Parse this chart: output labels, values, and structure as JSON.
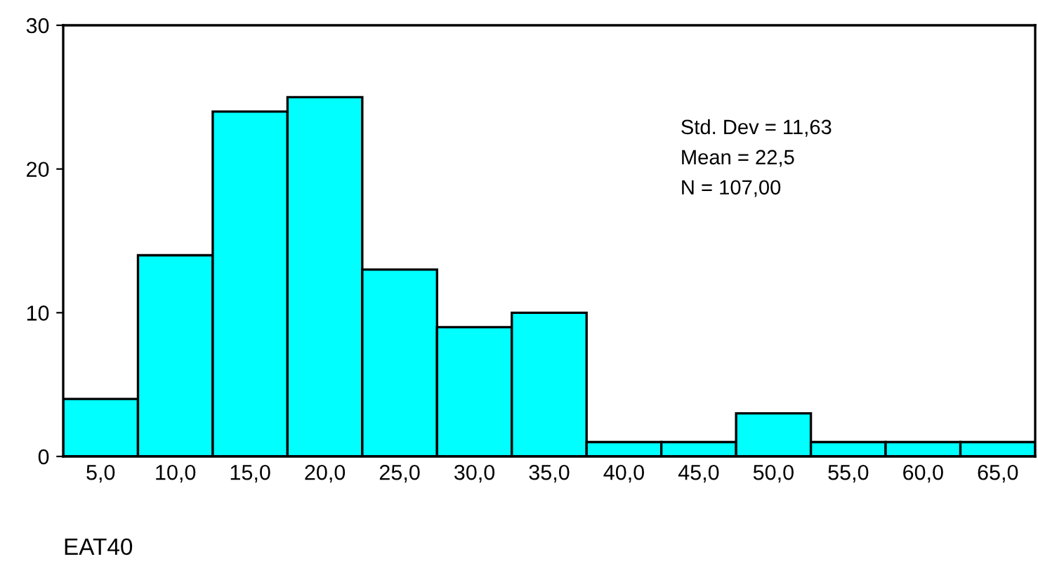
{
  "chart_data": {
    "type": "histogram",
    "xlabel": "EAT40",
    "bins": [
      2.5,
      7.5,
      12.5,
      17.5,
      22.5,
      27.5,
      32.5,
      37.5,
      42.5,
      47.5,
      52.5,
      57.5,
      62.5,
      67.5
    ],
    "values": [
      4,
      14,
      24,
      25,
      13,
      9,
      10,
      1,
      1,
      3,
      1,
      1,
      1
    ],
    "color": "#00ffff",
    "xlim": [
      2.5,
      67.5
    ],
    "xticks": [
      {
        "value": 5,
        "label": "5,0"
      },
      {
        "value": 10,
        "label": "10,0"
      },
      {
        "value": 15,
        "label": "15,0"
      },
      {
        "value": 20,
        "label": "20,0"
      },
      {
        "value": 25,
        "label": "25,0"
      },
      {
        "value": 30,
        "label": "30,0"
      },
      {
        "value": 35,
        "label": "35,0"
      },
      {
        "value": 40,
        "label": "40,0"
      },
      {
        "value": 45,
        "label": "45,0"
      },
      {
        "value": 50,
        "label": "50,0"
      },
      {
        "value": 55,
        "label": "55,0"
      },
      {
        "value": 60,
        "label": "60,0"
      },
      {
        "value": 65,
        "label": "65,0"
      }
    ],
    "ylim": [
      0,
      30
    ],
    "yticks": [
      0,
      10,
      20,
      30
    ],
    "grid": false,
    "legend": false,
    "annotations": [
      "Std. Dev = 11,63",
      "Mean = 22,5",
      "N = 107,00"
    ]
  }
}
